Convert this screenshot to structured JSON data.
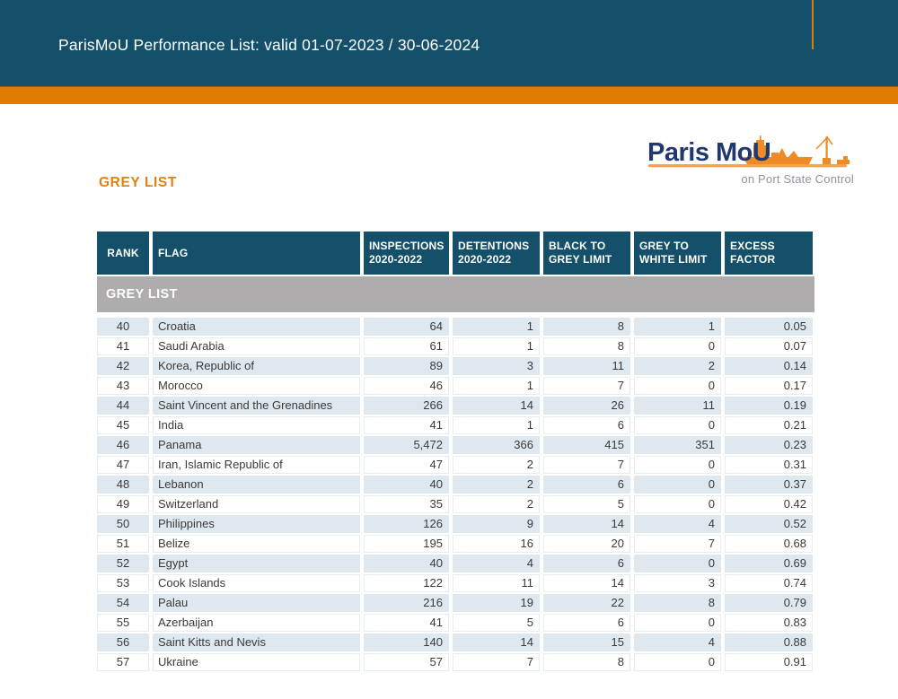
{
  "header": {
    "title": "ParisMoU Performance List: valid 01-07-2023 / 30-06-2024"
  },
  "logo": {
    "brand": "Paris MoU",
    "tagline": "on Port State Control"
  },
  "section_title": "GREY LIST",
  "table": {
    "group_label": "GREY LIST",
    "columns": [
      {
        "label": "RANK",
        "sub": ""
      },
      {
        "label": "FLAG",
        "sub": ""
      },
      {
        "label": "INSPECTIONS",
        "sub": "2020-2022"
      },
      {
        "label": "DETENTIONS",
        "sub": "2020-2022"
      },
      {
        "label": "BLACK TO",
        "sub": "GREY LIMIT"
      },
      {
        "label": "GREY TO",
        "sub": "WHITE LIMIT"
      },
      {
        "label": "EXCESS",
        "sub": "FACTOR"
      }
    ],
    "rows": [
      [
        "40",
        "Croatia",
        "64",
        "1",
        "8",
        "1",
        "0.05"
      ],
      [
        "41",
        "Saudi Arabia",
        "61",
        "1",
        "8",
        "0",
        "0.07"
      ],
      [
        "42",
        "Korea, Republic of",
        "89",
        "3",
        "11",
        "2",
        "0.14"
      ],
      [
        "43",
        "Morocco",
        "46",
        "1",
        "7",
        "0",
        "0.17"
      ],
      [
        "44",
        "Saint Vincent and the Grenadines",
        "266",
        "14",
        "26",
        "11",
        "0.19"
      ],
      [
        "45",
        "India",
        "41",
        "1",
        "6",
        "0",
        "0.21"
      ],
      [
        "46",
        "Panama",
        "5,472",
        "366",
        "415",
        "351",
        "0.23"
      ],
      [
        "47",
        "Iran, Islamic Republic of",
        "47",
        "2",
        "7",
        "0",
        "0.31"
      ],
      [
        "48",
        "Lebanon",
        "40",
        "2",
        "6",
        "0",
        "0.37"
      ],
      [
        "49",
        "Switzerland",
        "35",
        "2",
        "5",
        "0",
        "0.42"
      ],
      [
        "50",
        "Philippines",
        "126",
        "9",
        "14",
        "4",
        "0.52"
      ],
      [
        "51",
        "Belize",
        "195",
        "16",
        "20",
        "7",
        "0.68"
      ],
      [
        "52",
        "Egypt",
        "40",
        "4",
        "6",
        "0",
        "0.69"
      ],
      [
        "53",
        "Cook Islands",
        "122",
        "11",
        "14",
        "3",
        "0.74"
      ],
      [
        "54",
        "Palau",
        "216",
        "19",
        "22",
        "8",
        "0.79"
      ],
      [
        "55",
        "Azerbaijan",
        "41",
        "5",
        "6",
        "0",
        "0.83"
      ],
      [
        "56",
        "Saint Kitts and Nevis",
        "140",
        "14",
        "15",
        "4",
        "0.88"
      ],
      [
        "57",
        "Ukraine",
        "57",
        "7",
        "8",
        "0",
        "0.91"
      ]
    ]
  },
  "colors": {
    "teal": "#14506a",
    "orange": "#e17c02",
    "section_orange": "#e08112",
    "logo_navy": "#20386e",
    "logo_line_orange": "#f2a14d",
    "ship_orange": "#ed8c26",
    "tagline_grey": "#8e959b",
    "grey_band": "#aeacac",
    "row_blue": "#dfe8ef",
    "text_dark": "#3a3a3a"
  }
}
